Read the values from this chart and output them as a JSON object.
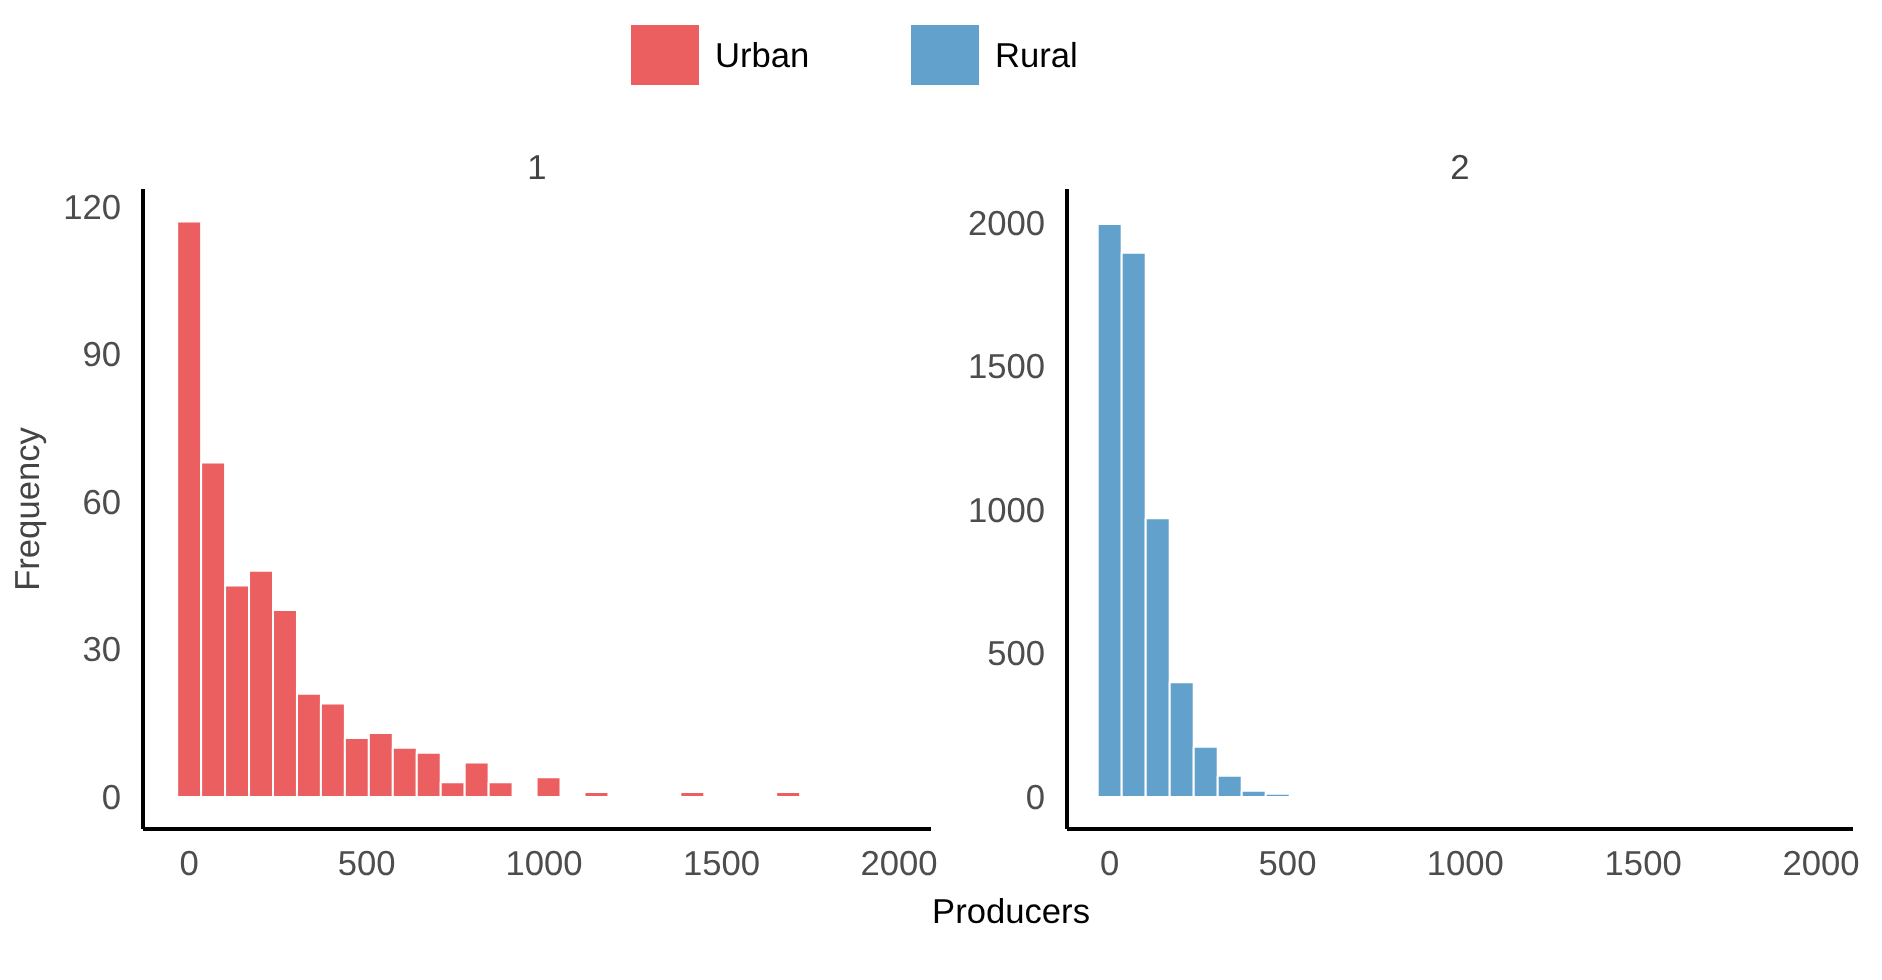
{
  "chart_data": [
    {
      "type": "histogram",
      "title": "1",
      "xlabel": "Producers",
      "ylabel": "Frequency",
      "legend": "top",
      "bins": [
        -33.75,
        33.75,
        101.25,
        168.75,
        236.25,
        303.75,
        371.25,
        438.75,
        506.25,
        573.75,
        641.25,
        708.75,
        776.25,
        843.75,
        911.25,
        978.75,
        1046.25,
        1113.75,
        1181.25,
        1248.75,
        1316.25,
        1383.75,
        1451.25,
        1518.75,
        1586.25,
        1653.75,
        1721.25
      ],
      "series": [
        {
          "name": "Urban",
          "color": "#eb5f61",
          "values": [
            117,
            68,
            43,
            46,
            38,
            21,
            19,
            12,
            13,
            10,
            9,
            3,
            7,
            3,
            0,
            4,
            0,
            1,
            0,
            0,
            0,
            1,
            0,
            0,
            0,
            1
          ]
        }
      ],
      "xlim": [
        -130,
        2090
      ],
      "xticks": [
        0,
        500,
        1000,
        1500,
        2000
      ],
      "ylim": [
        -6.5,
        123.6
      ],
      "yticks": [
        0,
        30,
        60,
        90,
        120
      ],
      "grid": false
    },
    {
      "type": "histogram",
      "title": "2",
      "legend": "top",
      "bins": [
        -33.75,
        33.75,
        101.25,
        168.75,
        236.25,
        303.75,
        371.25,
        438.75,
        506.25
      ],
      "series": [
        {
          "name": "Rural",
          "color": "#62a1cb",
          "values": [
            1995,
            1895,
            971,
            400,
            175,
            74,
            22,
            12
          ]
        }
      ],
      "xlim": [
        -120,
        2090
      ],
      "xticks": [
        0,
        500,
        1000,
        1500,
        2000
      ],
      "ylim": [
        -111,
        2117
      ],
      "yticks": [
        0,
        500,
        1000,
        1500,
        2000
      ],
      "grid": false
    }
  ]
}
